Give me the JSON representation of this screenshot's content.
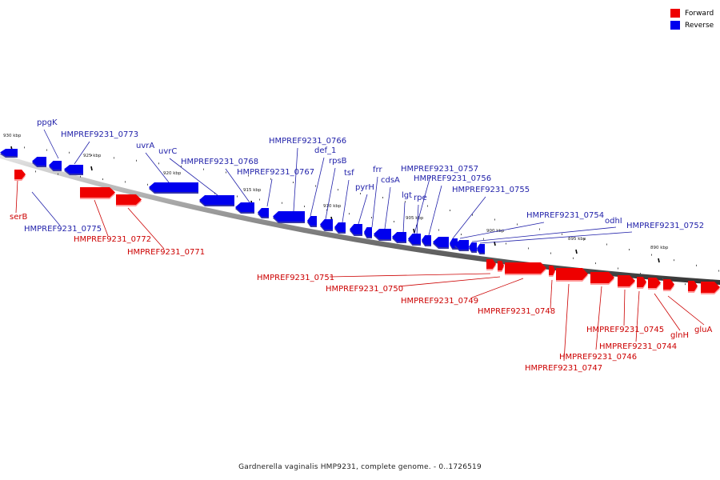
{
  "legend": {
    "forward_label": "Forward",
    "reverse_label": "Reverse",
    "forward_color": "#ee0000",
    "reverse_color": "#0000ee"
  },
  "caption": "Gardnerella vaginalis HMP9231, complete genome. - 0..1726519",
  "ticks": [
    "930 kbp",
    "925 kbp",
    "920 kbp",
    "915 kbp",
    "910 kbp",
    "905 kbp",
    "900 kbp",
    "895 kbp",
    "890 kbp"
  ],
  "genes": {
    "forward": [
      "serB",
      "HMPREF9231_0772",
      "HMPREF9231_0771",
      "HMPREF9231_0751",
      "HMPREF9231_0750",
      "HMPREF9231_0749",
      "HMPREF9231_0748",
      "HMPREF9231_0747",
      "HMPREF9231_0746",
      "HMPREF9231_0745",
      "HMPREF9231_0744",
      "glnH",
      "gluA"
    ],
    "reverse": [
      "ppgK",
      "HMPREF9231_0773",
      "HMPREF9231_0775",
      "uvrA",
      "uvrC",
      "HMPREF9231_0768",
      "HMPREF9231_0767",
      "HMPREF9231_0766",
      "def_1",
      "rpsB",
      "tsf",
      "pyrH",
      "frr",
      "cdsA",
      "HMPREF9231_0757",
      "HMPREF9231_0756",
      "lgt",
      "rpe",
      "HMPREF9231_0755",
      "HMPREF9231_0754",
      "odhI",
      "HMPREF9231_0752"
    ]
  }
}
